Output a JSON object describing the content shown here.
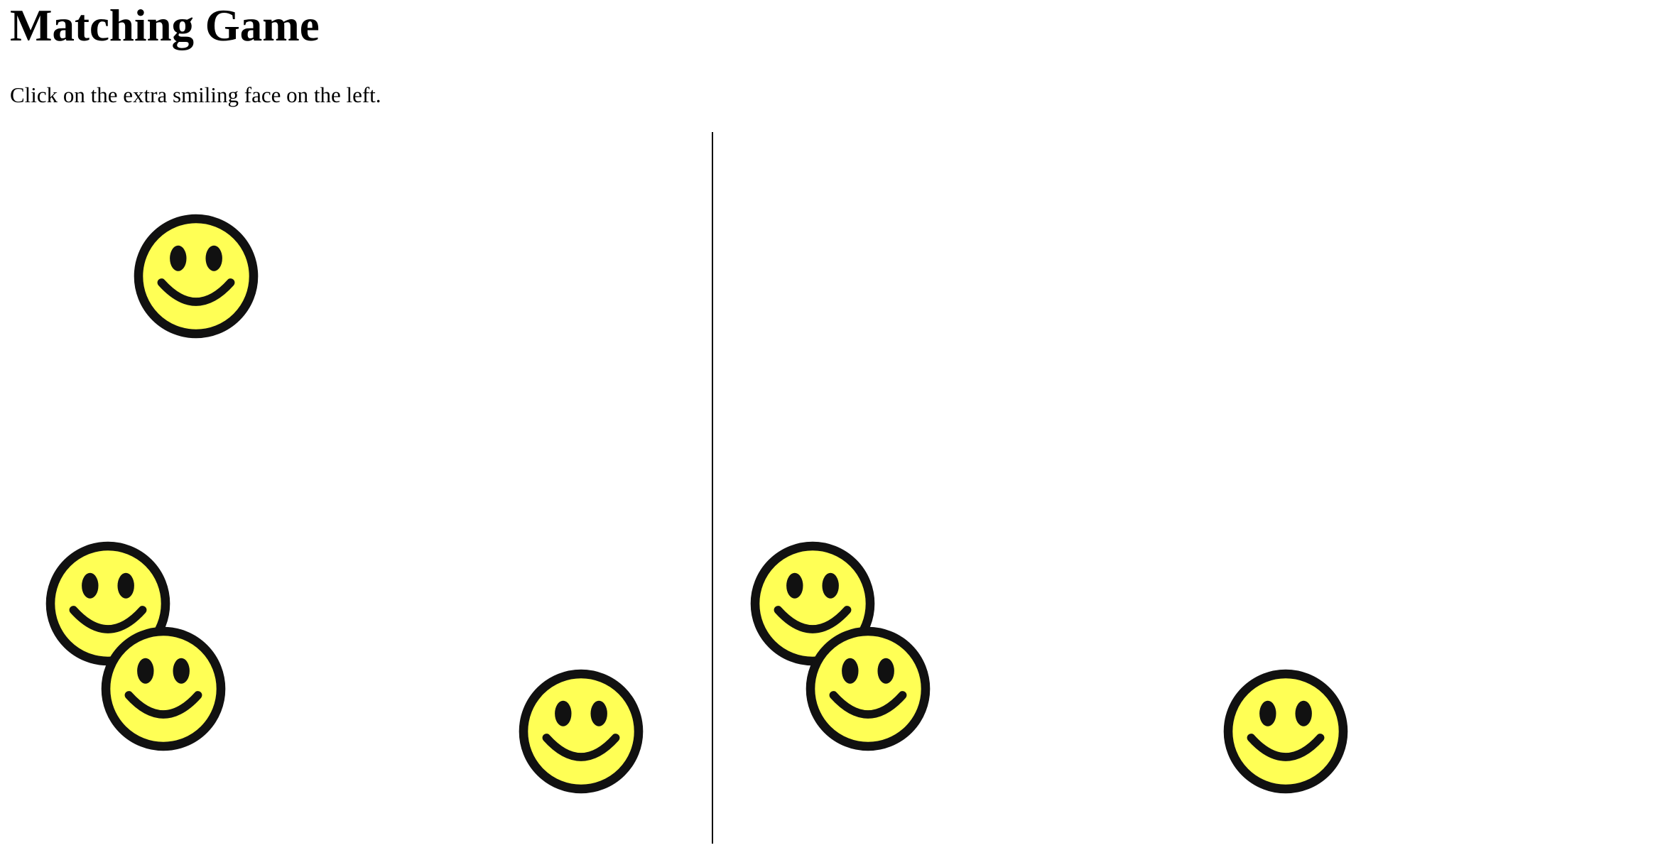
{
  "header": {
    "title": "Matching Game",
    "instructions": "Click on the extra smiling face on the left."
  },
  "colors": {
    "face_fill": "#ffff55",
    "face_outline": "#111111",
    "divider": "#000000",
    "background": "#ffffff"
  },
  "icons": {
    "face": "smiley-face-icon"
  },
  "left_board": {
    "face_count": 4
  },
  "right_board": {
    "face_count": 3
  }
}
